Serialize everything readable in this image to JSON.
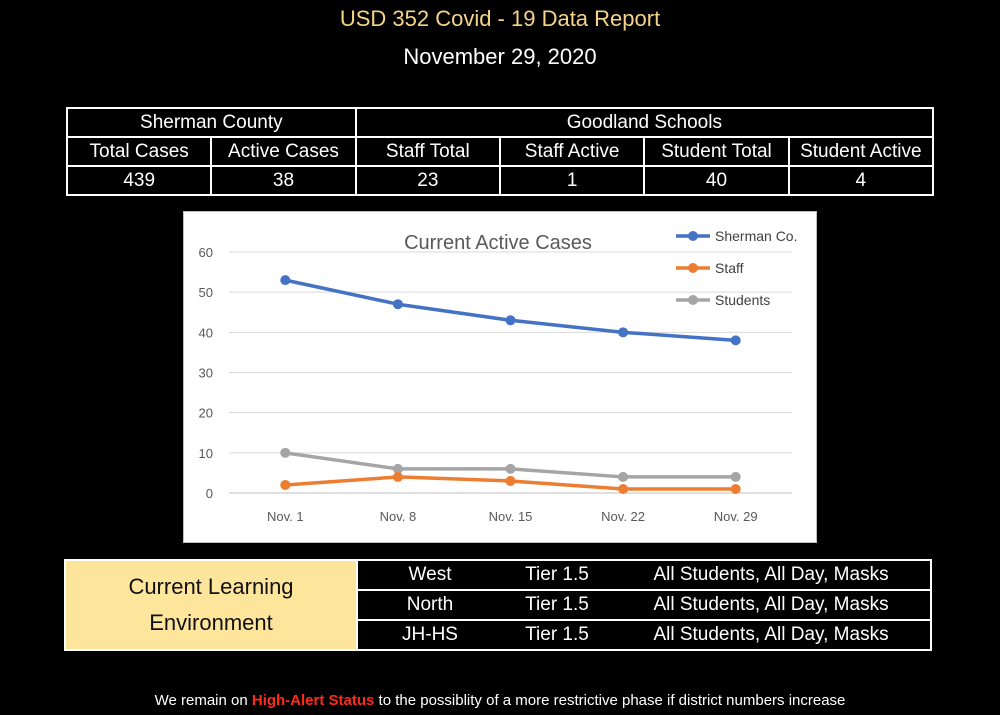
{
  "report": {
    "title": "USD 352 Covid - 19 Data Report",
    "date": "November 29, 2020"
  },
  "stats_table": {
    "group1": "Sherman County",
    "group2": "Goodland Schools",
    "headers": [
      "Total Cases",
      "Active Cases",
      "Staff Total",
      "Staff Active",
      "Student Total",
      "Student Active"
    ],
    "values": [
      "439",
      "38",
      "23",
      "1",
      "40",
      "4"
    ]
  },
  "chart_data": {
    "type": "line",
    "title": "Current Active Cases",
    "categories": [
      "Nov. 1",
      "Nov. 8",
      "Nov. 15",
      "Nov. 22",
      "Nov. 29"
    ],
    "ylim": [
      0,
      60
    ],
    "yticks": [
      0,
      10,
      20,
      30,
      40,
      50,
      60
    ],
    "grid": true,
    "legend": "top-right",
    "series": [
      {
        "name": "Sherman Co.",
        "color": "#4472c4",
        "values": [
          53,
          47,
          43,
          40,
          38
        ]
      },
      {
        "name": "Staff",
        "color": "#ed7d31",
        "values": [
          2,
          4,
          3,
          1,
          1
        ]
      },
      {
        "name": "Students",
        "color": "#a5a5a5",
        "values": [
          10,
          6,
          6,
          4,
          4
        ]
      }
    ]
  },
  "environment": {
    "label_line1": "Current Learning",
    "label_line2": "Environment",
    "rows": [
      {
        "school": "West",
        "tier": "Tier 1.5",
        "detail": "All Students, All Day, Masks"
      },
      {
        "school": "North",
        "tier": "Tier 1.5",
        "detail": "All Students, All Day, Masks"
      },
      {
        "school": "JH-HS",
        "tier": "Tier 1.5",
        "detail": "All Students, All Day, Masks"
      }
    ]
  },
  "footer": {
    "before": "We remain on ",
    "alert": "High-Alert Status",
    "after": " to the possiblity of a more restrictive phase if district numbers increase"
  },
  "colors": {
    "background": "#000000",
    "title": "#f5d48a",
    "env_label_bg": "#fde59c",
    "alert": "#ff2a1a"
  }
}
